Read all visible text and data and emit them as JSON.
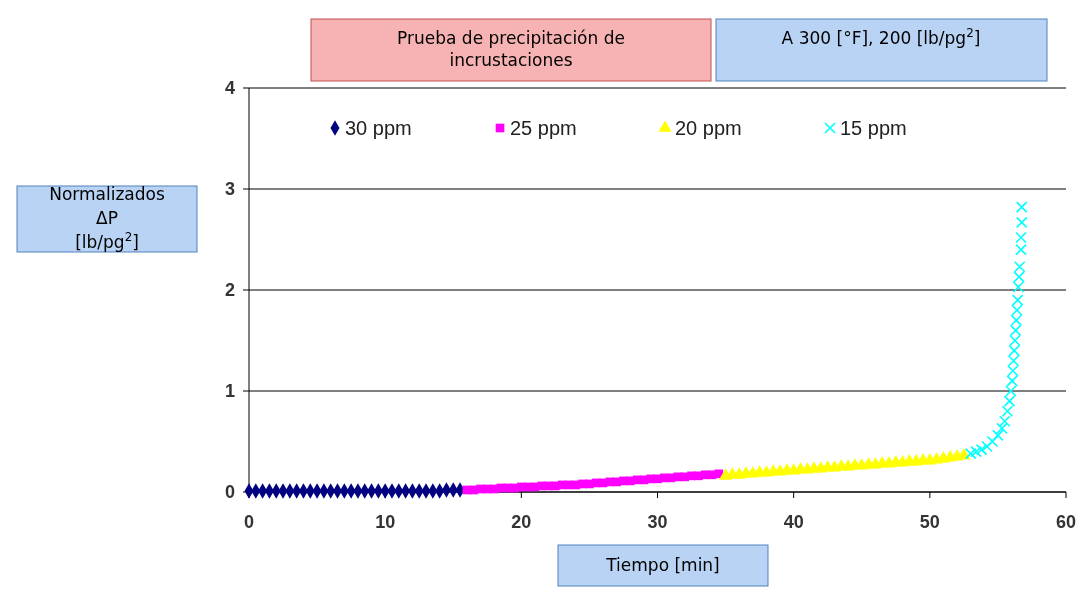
{
  "chart_data": {
    "type": "scatter",
    "title": "Prueba de precipitación de incrustaciones",
    "subtitle": "A 300 [°F], 200 [lb/pg$^{2}$]",
    "xlabel": "Tiempo [min]",
    "ylabel": "Normalizados ΔP [lb/pg$^{2}$]",
    "xlim": [
      0,
      60
    ],
    "xticks": [
      0,
      10,
      20,
      30,
      40,
      50,
      60
    ],
    "ylim": [
      0,
      4
    ],
    "yticks": [
      0,
      1,
      2,
      3,
      4
    ],
    "grid": "y",
    "legend": "top",
    "series": [
      {
        "name": "30 ppm",
        "color": "#000080",
        "marker": "diamond",
        "x": [
          0,
          0.5,
          1,
          1.5,
          2,
          2.5,
          3,
          3.5,
          4,
          4.5,
          5,
          5.5,
          6,
          6.5,
          7,
          7.5,
          8,
          8.5,
          9,
          9.5,
          10,
          10.5,
          11,
          11.5,
          12,
          12.5,
          13,
          13.5,
          14,
          14.5,
          15,
          15.5
        ],
        "values": [
          0.01,
          0.01,
          0.01,
          0.01,
          0.01,
          0.01,
          0.01,
          0.01,
          0.01,
          0.01,
          0.01,
          0.01,
          0.01,
          0.01,
          0.01,
          0.01,
          0.01,
          0.01,
          0.01,
          0.01,
          0.01,
          0.01,
          0.01,
          0.01,
          0.01,
          0.01,
          0.01,
          0.01,
          0.01,
          0.02,
          0.02,
          0.02
        ]
      },
      {
        "name": "25 ppm",
        "color": "#ff00ff",
        "marker": "square",
        "x": [
          16,
          16.5,
          17,
          17.5,
          18,
          18.5,
          19,
          19.5,
          20,
          20.5,
          21,
          21.5,
          22,
          22.5,
          23,
          23.5,
          24,
          24.5,
          25,
          25.5,
          26,
          26.5,
          27,
          27.5,
          28,
          28.5,
          29,
          29.5,
          30,
          30.5,
          31,
          31.5,
          32,
          32.5,
          33,
          33.5,
          34,
          34.5
        ],
        "values": [
          0.02,
          0.02,
          0.03,
          0.03,
          0.03,
          0.04,
          0.04,
          0.04,
          0.05,
          0.05,
          0.05,
          0.06,
          0.06,
          0.06,
          0.07,
          0.07,
          0.07,
          0.08,
          0.08,
          0.09,
          0.09,
          0.1,
          0.1,
          0.11,
          0.11,
          0.12,
          0.12,
          0.13,
          0.13,
          0.14,
          0.14,
          0.15,
          0.15,
          0.16,
          0.16,
          0.17,
          0.17,
          0.18
        ]
      },
      {
        "name": "20 ppm",
        "color": "#ffff00",
        "marker": "triangle",
        "x": [
          35,
          35.5,
          36,
          36.5,
          37,
          37.5,
          38,
          38.5,
          39,
          39.5,
          40,
          40.5,
          41,
          41.5,
          42,
          42.5,
          43,
          43.5,
          44,
          44.5,
          45,
          45.5,
          46,
          46.5,
          47,
          47.5,
          48,
          48.5,
          49,
          49.5,
          50,
          50.5,
          51,
          51.5,
          52,
          52.5
        ],
        "values": [
          0.16,
          0.17,
          0.17,
          0.18,
          0.18,
          0.19,
          0.19,
          0.2,
          0.2,
          0.21,
          0.21,
          0.22,
          0.22,
          0.23,
          0.23,
          0.24,
          0.24,
          0.25,
          0.25,
          0.26,
          0.26,
          0.27,
          0.27,
          0.28,
          0.28,
          0.29,
          0.29,
          0.3,
          0.3,
          0.31,
          0.31,
          0.32,
          0.33,
          0.34,
          0.35,
          0.36
        ]
      },
      {
        "name": "15 ppm",
        "color": "#00ffff",
        "marker": "cross",
        "x": [
          53,
          53.4,
          53.8,
          54.2,
          54.6,
          55,
          55.3,
          55.5,
          55.7,
          55.85,
          55.95,
          56.05,
          56.1,
          56.15,
          56.2,
          56.25,
          56.3,
          56.35,
          56.4,
          56.45,
          56.5,
          56.55,
          56.6,
          56.7,
          56.7,
          56.75,
          56.75
        ],
        "values": [
          0.38,
          0.4,
          0.42,
          0.45,
          0.5,
          0.56,
          0.63,
          0.7,
          0.8,
          0.9,
          1.0,
          1.1,
          1.2,
          1.3,
          1.4,
          1.5,
          1.6,
          1.7,
          1.8,
          1.9,
          2.03,
          2.13,
          2.23,
          2.4,
          2.52,
          2.67,
          2.82
        ]
      }
    ]
  }
}
